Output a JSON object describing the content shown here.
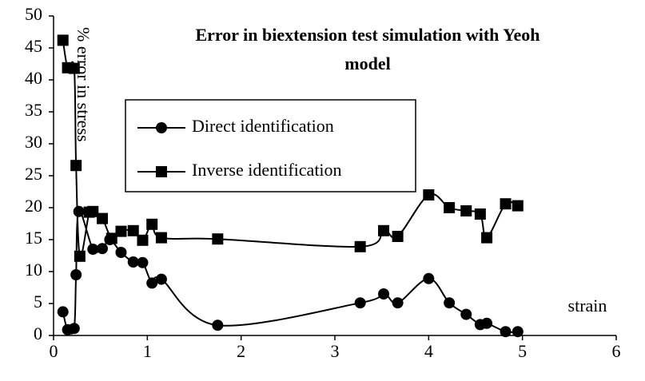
{
  "chart_data": {
    "type": "line",
    "title": "Error in biextension test simulation with Yeoh model",
    "ylabel": "% error in stress",
    "xlabel": "strain",
    "xlim": [
      0,
      6
    ],
    "xticks": [
      0,
      1,
      2,
      3,
      4,
      5,
      6
    ],
    "ylim": [
      0,
      50
    ],
    "yticks": [
      0,
      5,
      10,
      15,
      20,
      25,
      30,
      35,
      40,
      45,
      50
    ],
    "grid": false,
    "legend": "upper center",
    "series": [
      {
        "name": "Direct identification",
        "color": "#000000",
        "marker": "circle",
        "x": [
          0.1,
          0.15,
          0.22,
          0.24,
          0.27,
          0.42,
          0.52,
          0.6,
          0.72,
          0.85,
          0.95,
          1.05,
          1.15,
          1.75,
          3.27,
          3.52,
          3.67,
          4.0,
          4.22,
          4.4,
          4.55,
          4.62,
          4.82,
          4.95
        ],
        "values": [
          3.7,
          0.9,
          1.1,
          9.5,
          19.4,
          13.5,
          13.6,
          15.0,
          13.0,
          11.5,
          11.4,
          8.2,
          8.8,
          1.6,
          5.1,
          6.5,
          5.1,
          8.9,
          5.1,
          3.3,
          1.7,
          1.9,
          0.6,
          0.6
        ]
      },
      {
        "name": "Inverse identification",
        "color": "#000000",
        "marker": "square",
        "x": [
          0.1,
          0.15,
          0.22,
          0.24,
          0.28,
          0.38,
          0.42,
          0.52,
          0.62,
          0.72,
          0.85,
          0.95,
          1.05,
          1.15,
          1.75,
          3.27,
          3.52,
          3.67,
          4.0,
          4.22,
          4.4,
          4.55,
          4.62,
          4.82,
          4.95
        ],
        "values": [
          46.2,
          41.9,
          41.8,
          26.6,
          12.4,
          19.3,
          19.4,
          18.3,
          15.2,
          16.3,
          16.4,
          14.9,
          17.4,
          15.3,
          15.1,
          13.9,
          16.4,
          15.5,
          22.0,
          20.0,
          19.5,
          19.0,
          15.3,
          20.6,
          20.3
        ]
      }
    ]
  }
}
